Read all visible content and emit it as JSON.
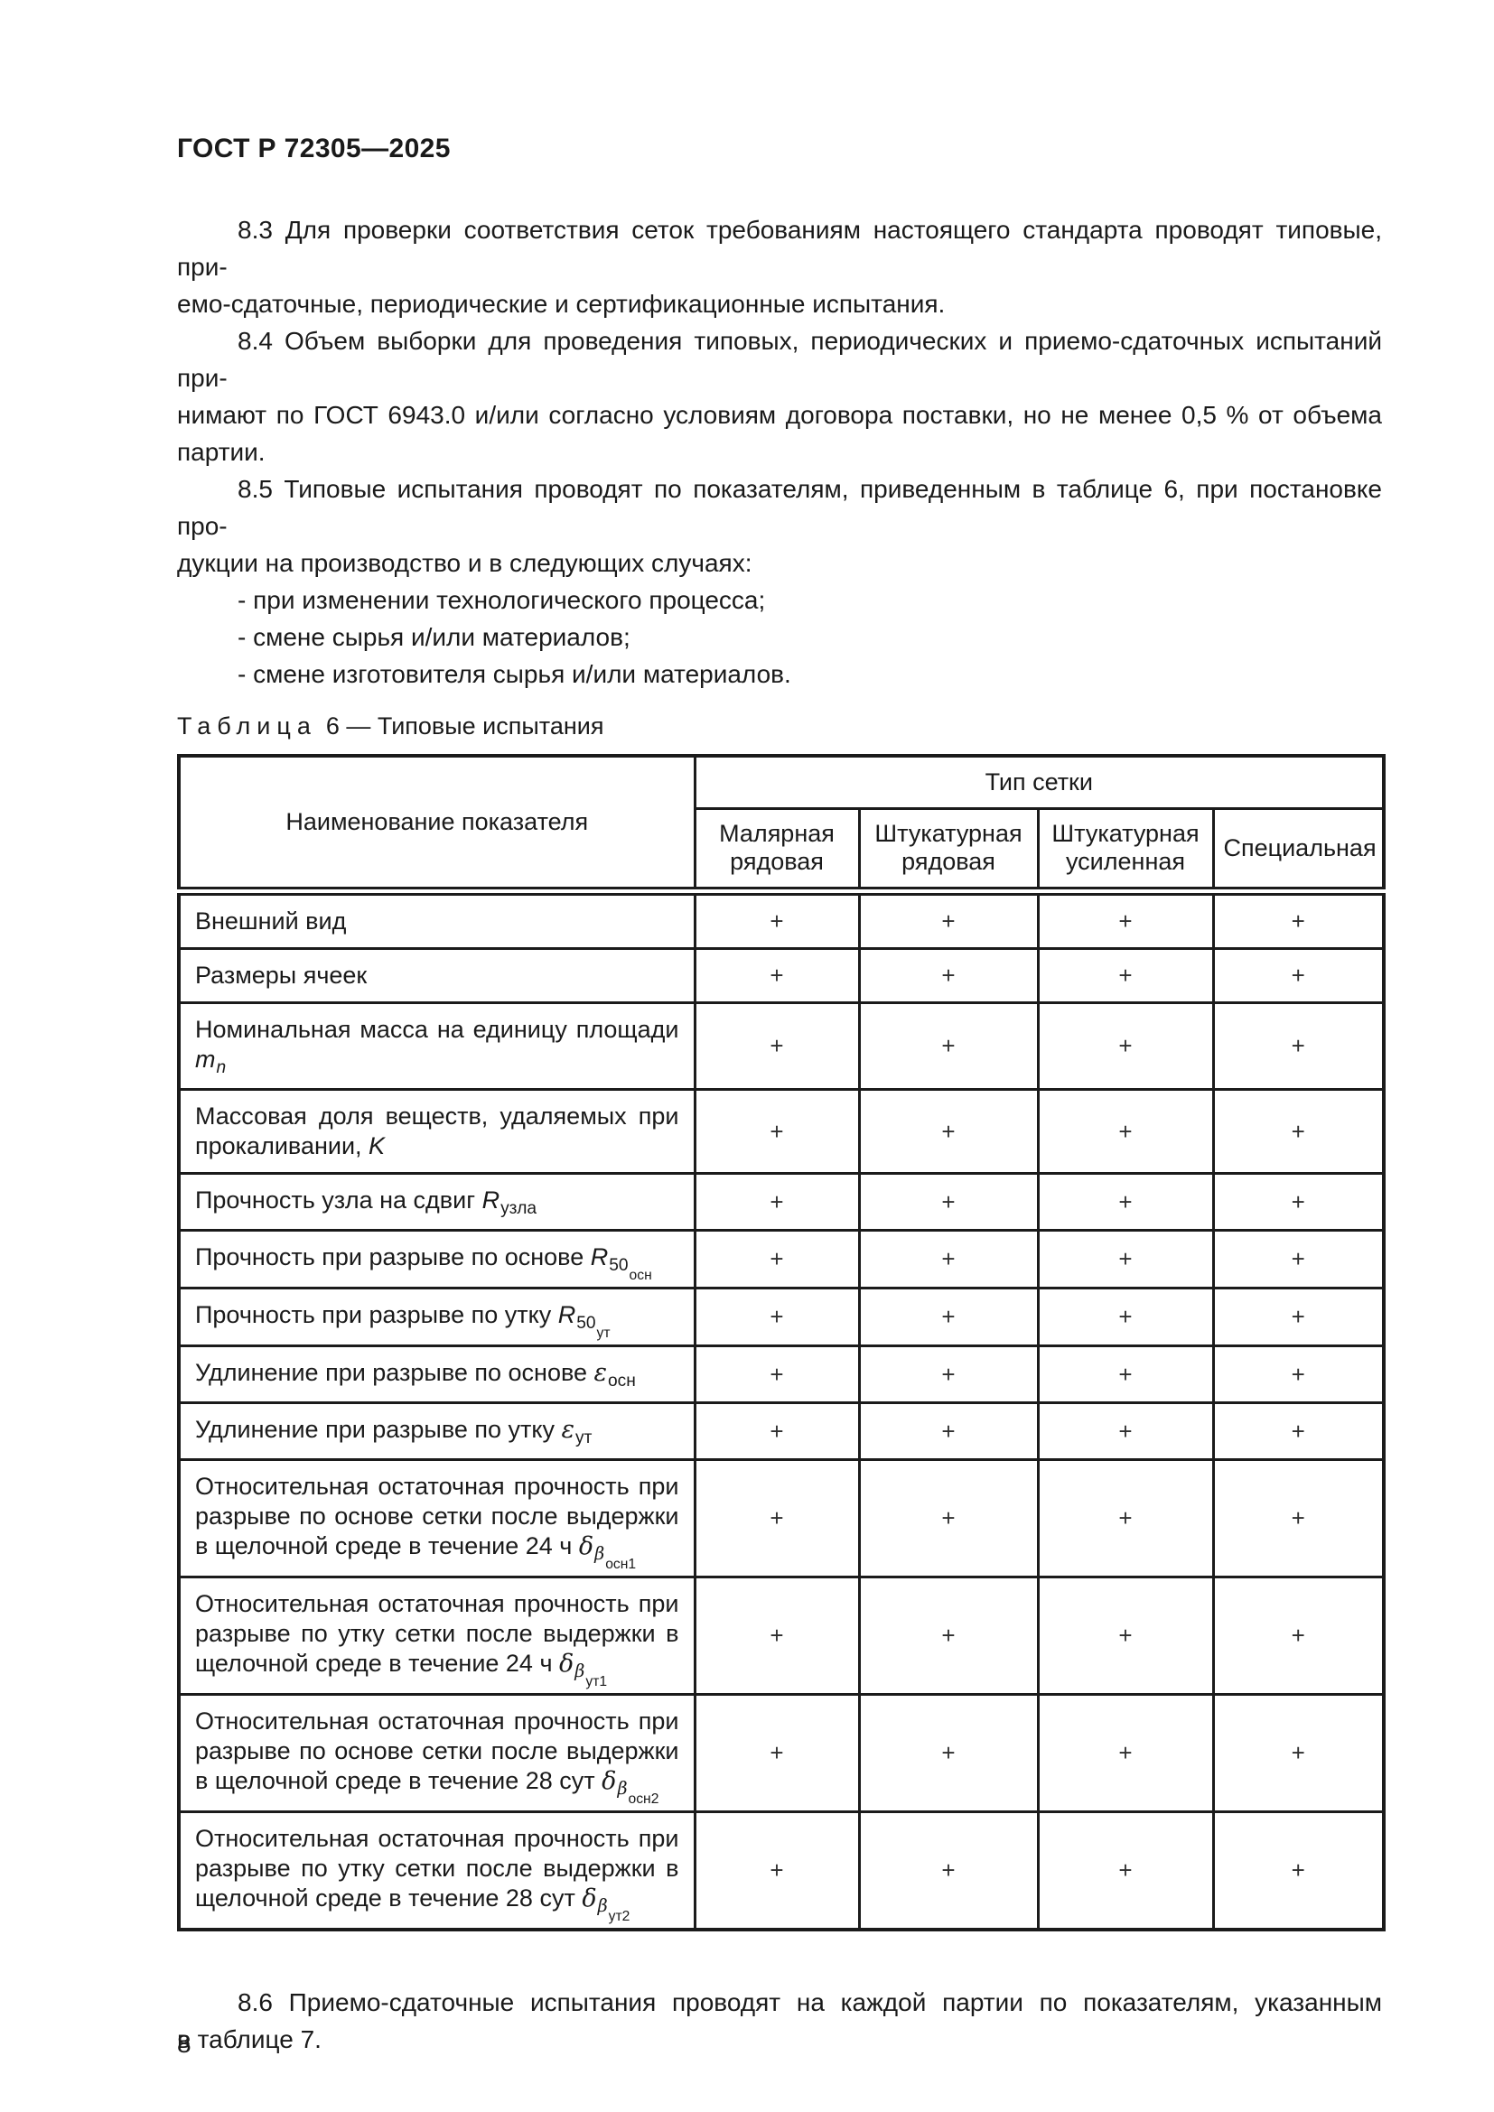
{
  "doc": {
    "standard_code": "ГОСТ Р 72305—2025",
    "page_number": "8"
  },
  "paragraphs": [
    {
      "id": "p-8-3",
      "lines": [
        "8.3 Для проверки соответствия сеток требованиям настоящего стандарта проводят типовые, при-",
        "емо-сдаточные, периодические и сертификационные испытания."
      ]
    },
    {
      "id": "p-8-4",
      "lines": [
        "8.4 Объем выборки для проведения типовых, периодических и приемо-сдаточных испытаний при-",
        "нимают по ГОСТ 6943.0 и/или согласно условиям договора поставки, но не менее 0,5 % от объема",
        "партии."
      ]
    },
    {
      "id": "p-8-5",
      "lines": [
        "8.5 Типовые испытания проводят по показателям, приведенным в таблице 6, при постановке про-",
        "дукции на производство и в следующих случаях:"
      ]
    },
    {
      "id": "bullet-1",
      "lines": [
        "- при изменении технологического процесса;"
      ]
    },
    {
      "id": "bullet-2",
      "lines": [
        "- смене сырья и/или материалов;"
      ]
    },
    {
      "id": "bullet-3",
      "lines": [
        "- смене изготовителя сырья и/или материалов."
      ]
    }
  ],
  "table": {
    "caption_word": "Таблица",
    "caption_rest": "6 — Типовые испытания",
    "header": {
      "indicator_col": "Наименование показателя",
      "group_col": "Тип сетки",
      "type_cols": [
        "Малярная рядовая",
        "Штукатурная рядовая",
        "Штукатурная усиленная",
        "Специальная"
      ]
    },
    "rows": [
      {
        "h": 1,
        "label_parts": [
          {
            "t": "Внешний вид"
          }
        ],
        "values": [
          "+",
          "+",
          "+",
          "+"
        ]
      },
      {
        "h": 1,
        "label_parts": [
          {
            "t": "Размеры ячеек"
          }
        ],
        "values": [
          "+",
          "+",
          "+",
          "+"
        ]
      },
      {
        "h": 1,
        "label_parts": [
          {
            "t": "Номинальная масса на единицу площади "
          },
          {
            "t": "m",
            "i": 1
          },
          {
            "t": "n",
            "i": 1,
            "s": 1
          }
        ],
        "values": [
          "+",
          "+",
          "+",
          "+"
        ]
      },
      {
        "h": 2,
        "label_parts": [
          {
            "t": "Массовая доля веществ, удаляемых при прокаливании, "
          },
          {
            "t": "K",
            "i": 1
          }
        ],
        "values": [
          "+",
          "+",
          "+",
          "+"
        ]
      },
      {
        "h": 1,
        "label_parts": [
          {
            "t": "Прочность узла на сдвиг "
          },
          {
            "t": "R",
            "i": 1
          },
          {
            "t": "узла",
            "s": 1
          }
        ],
        "values": [
          "+",
          "+",
          "+",
          "+"
        ]
      },
      {
        "h": 1,
        "label_parts": [
          {
            "t": "Прочность при разрыве по основе "
          },
          {
            "t": "R",
            "i": 1
          },
          {
            "t": "50",
            "s": 1
          },
          {
            "t": "осн",
            "s": 2
          }
        ],
        "values": [
          "+",
          "+",
          "+",
          "+"
        ]
      },
      {
        "h": 1,
        "label_parts": [
          {
            "t": "Прочность при разрыве по утку "
          },
          {
            "t": "R",
            "i": 1
          },
          {
            "t": "50",
            "s": 1
          },
          {
            "t": "ут",
            "s": 2
          }
        ],
        "values": [
          "+",
          "+",
          "+",
          "+"
        ]
      },
      {
        "h": 1,
        "label_parts": [
          {
            "t": "Удлинение при разрыве по основе "
          },
          {
            "t": "ε",
            "g": 1
          },
          {
            "t": "осн",
            "s": 1
          }
        ],
        "values": [
          "+",
          "+",
          "+",
          "+"
        ]
      },
      {
        "h": 1,
        "label_parts": [
          {
            "t": "Удлинение при разрыве по утку "
          },
          {
            "t": "ε",
            "g": 1
          },
          {
            "t": "ут",
            "s": 1
          }
        ],
        "values": [
          "+",
          "+",
          "+",
          "+"
        ]
      },
      {
        "h": 3,
        "label_parts": [
          {
            "t": "Относительная остаточная прочность при разрыве по основе сетки после выдержки в щелочной среде в течение 24 ч "
          },
          {
            "t": "δ",
            "g": 1
          },
          {
            "t": "β",
            "g": 1,
            "s": 1
          },
          {
            "t": "осн1",
            "s": 2
          }
        ],
        "values": [
          "+",
          "+",
          "+",
          "+"
        ]
      },
      {
        "h": 3,
        "label_parts": [
          {
            "t": "Относительная остаточная прочность при разрыве по утку сетки после выдержки в щелочной среде в течение 24 ч "
          },
          {
            "t": "δ",
            "g": 1
          },
          {
            "t": "β",
            "g": 1,
            "s": 1
          },
          {
            "t": "ут1",
            "s": 2
          }
        ],
        "values": [
          "+",
          "+",
          "+",
          "+"
        ]
      },
      {
        "h": 3,
        "label_parts": [
          {
            "t": "Относительная остаточная прочность при разрыве по основе сетки после выдержки в щелочной среде в течение 28 сут "
          },
          {
            "t": "δ",
            "g": 1
          },
          {
            "t": "β",
            "g": 1,
            "s": 1
          },
          {
            "t": "осн2",
            "s": 2
          }
        ],
        "values": [
          "+",
          "+",
          "+",
          "+"
        ]
      },
      {
        "h": 3,
        "label_parts": [
          {
            "t": "Относительная остаточная прочность при разрыве по утку сетки после выдержки в щелочной среде в течение 28 сут "
          },
          {
            "t": "δ",
            "g": 1
          },
          {
            "t": "β",
            "g": 1,
            "s": 1
          },
          {
            "t": "ут2",
            "s": 2
          }
        ],
        "values": [
          "+",
          "+",
          "+",
          "+"
        ]
      }
    ]
  },
  "closing": [
    {
      "id": "p-8-6",
      "lines": [
        "8.6 Приемо-сдаточные испытания проводят на каждой партии по показателям, указанным",
        "в таблице 7."
      ]
    }
  ]
}
